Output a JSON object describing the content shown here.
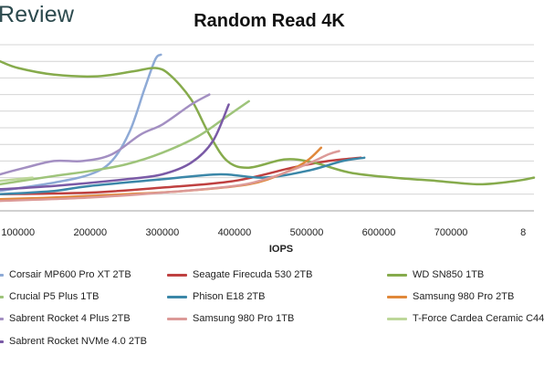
{
  "header": {
    "brand": "Review"
  },
  "chart_data": {
    "type": "line",
    "title": "Random Read 4K",
    "xlabel": "IOPS",
    "ylabel": "",
    "x_ticks": [
      "100000",
      "200000",
      "300000",
      "400000",
      "500000",
      "600000",
      "700000",
      "8"
    ],
    "xlim": [
      75000,
      815000
    ],
    "ylim": [
      0,
      10
    ],
    "grid": true,
    "legend_position": "bottom",
    "series": [
      {
        "name": "Corsair MP600 Pro XT 2TB",
        "color": "#8eaad6",
        "points": [
          [
            75000,
            1.2
          ],
          [
            150000,
            1.7
          ],
          [
            200000,
            2.2
          ],
          [
            230000,
            3.0
          ],
          [
            255000,
            4.8
          ],
          [
            275000,
            7.3
          ],
          [
            290000,
            9.1
          ],
          [
            298000,
            9.4
          ]
        ]
      },
      {
        "name": "Seagate Firecuda 530 2TB",
        "color": "#bf4040",
        "points": [
          [
            75000,
            1.0
          ],
          [
            200000,
            1.1
          ],
          [
            300000,
            1.4
          ],
          [
            400000,
            1.8
          ],
          [
            480000,
            2.6
          ],
          [
            530000,
            3.0
          ],
          [
            575000,
            3.2
          ]
        ]
      },
      {
        "name": "WD SN850 1TB",
        "color": "#86ab4c",
        "points": [
          [
            75000,
            9.0
          ],
          [
            100000,
            8.6
          ],
          [
            150000,
            8.2
          ],
          [
            210000,
            8.1
          ],
          [
            260000,
            8.4
          ],
          [
            290000,
            8.6
          ],
          [
            310000,
            8.2
          ],
          [
            340000,
            6.7
          ],
          [
            365000,
            4.6
          ],
          [
            390000,
            3.0
          ],
          [
            420000,
            2.6
          ],
          [
            470000,
            3.1
          ],
          [
            510000,
            2.9
          ],
          [
            560000,
            2.3
          ],
          [
            620000,
            2.0
          ],
          [
            680000,
            1.8
          ],
          [
            740000,
            1.6
          ],
          [
            790000,
            1.8
          ],
          [
            815000,
            2.0
          ]
        ]
      },
      {
        "name": "Crucial P5 Plus 1TB",
        "color": "#9ec47a",
        "points": [
          [
            75000,
            1.6
          ],
          [
            150000,
            2.1
          ],
          [
            200000,
            2.4
          ],
          [
            250000,
            2.8
          ],
          [
            300000,
            3.5
          ],
          [
            350000,
            4.5
          ],
          [
            390000,
            5.7
          ],
          [
            420000,
            6.6
          ]
        ]
      },
      {
        "name": "Phison E18 2TB",
        "color": "#3b87a8",
        "points": [
          [
            75000,
            1.0
          ],
          [
            150000,
            1.2
          ],
          [
            200000,
            1.5
          ],
          [
            300000,
            1.9
          ],
          [
            380000,
            2.2
          ],
          [
            440000,
            2.0
          ],
          [
            500000,
            2.4
          ],
          [
            550000,
            3.0
          ],
          [
            580000,
            3.2
          ]
        ]
      },
      {
        "name": "Samsung 980 Pro 2TB",
        "color": "#e0883a",
        "points": [
          [
            75000,
            0.7
          ],
          [
            150000,
            0.8
          ],
          [
            250000,
            1.0
          ],
          [
            330000,
            1.2
          ],
          [
            420000,
            1.6
          ],
          [
            470000,
            2.3
          ],
          [
            500000,
            3.0
          ],
          [
            520000,
            3.8
          ]
        ]
      },
      {
        "name": "Sabrent Rocket 4 Plus 2TB",
        "color": "#a38fc2",
        "points": [
          [
            75000,
            2.2
          ],
          [
            110000,
            2.6
          ],
          [
            150000,
            3.0
          ],
          [
            190000,
            3.0
          ],
          [
            230000,
            3.4
          ],
          [
            270000,
            4.6
          ],
          [
            300000,
            5.2
          ],
          [
            340000,
            6.4
          ],
          [
            365000,
            7.0
          ]
        ]
      },
      {
        "name": "Samsung 980 Pro 1TB",
        "color": "#dc9a98",
        "points": [
          [
            75000,
            0.6
          ],
          [
            200000,
            0.8
          ],
          [
            300000,
            1.1
          ],
          [
            400000,
            1.5
          ],
          [
            450000,
            2.0
          ],
          [
            500000,
            2.8
          ],
          [
            530000,
            3.4
          ],
          [
            545000,
            3.6
          ]
        ]
      },
      {
        "name": "T-Force Cardea Ceramic C44",
        "color": "#bdd79a",
        "points": [
          [
            75000,
            1.8
          ],
          [
            120000,
            2.0
          ]
        ]
      },
      {
        "name": "Sabrent Rocket NVMe 4.0 2TB",
        "color": "#7a5aa6",
        "points": [
          [
            75000,
            1.3
          ],
          [
            150000,
            1.5
          ],
          [
            250000,
            1.9
          ],
          [
            300000,
            2.2
          ],
          [
            340000,
            2.9
          ],
          [
            370000,
            4.2
          ],
          [
            392000,
            6.4
          ]
        ]
      }
    ]
  }
}
